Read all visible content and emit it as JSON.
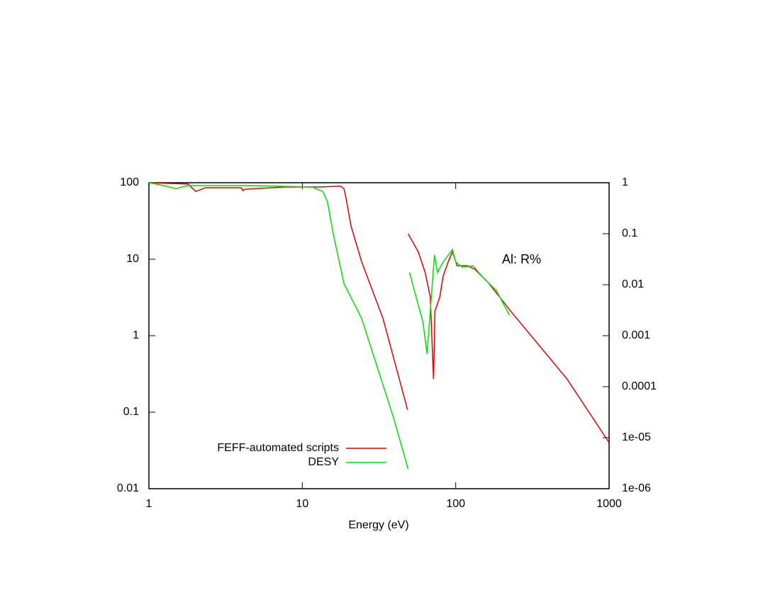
{
  "chart_data": {
    "type": "line",
    "x_label": "Energy (eV)",
    "annotation": "Al: R%",
    "xscale": "log",
    "yscale": "log",
    "y2scale": "log",
    "legend_position": "bottom left",
    "xlim": [
      1,
      1000
    ],
    "xticks": [
      1,
      10,
      100,
      1000
    ],
    "ylim": [
      0.01,
      100
    ],
    "yticks": [
      0.01,
      0.1,
      1,
      10,
      100
    ],
    "y2lim": [
      1e-06,
      1
    ],
    "y2ticks": [
      1,
      0.1,
      0.01,
      0.001,
      0.0001,
      {
        "value": 1e-05,
        "label": "1e-05"
      },
      {
        "value": 1e-06,
        "label": "1e-06"
      }
    ],
    "series": [
      {
        "name": "FEFF-automated scripts",
        "color": "#e00000",
        "x": [
          1,
          1.8,
          2.02,
          2.34,
          4.0,
          4.1,
          4.2,
          7.6,
          12.9,
          17.7,
          18.7,
          19.3,
          20.8,
          24.4,
          33.6,
          48.5,
          null,
          49,
          56.9,
          63.2,
          68.3,
          71.2,
          71.7,
          73.2,
          78.7,
          82.8,
          89.3,
          95.3,
          102,
          120,
          133,
          165,
          228,
          533,
          1000
        ],
        "values": [
          100,
          96,
          77,
          86,
          86,
          79,
          82,
          88,
          88,
          90,
          84,
          62,
          27,
          9.2,
          1.67,
          0.108,
          null,
          21.5,
          12.6,
          6.7,
          3.2,
          0.37,
          0.27,
          2.1,
          3.2,
          6.0,
          9.2,
          12.6,
          8.2,
          8.2,
          7.4,
          4.8,
          2.1,
          0.27,
          0.04
        ]
      },
      {
        "name": "DESY",
        "color": "#00e000",
        "x": [
          1,
          1.24,
          1.5,
          1.8,
          4.4,
          11.6,
          13.6,
          14.6,
          15.9,
          18.7,
          24.4,
          39.3,
          49,
          null,
          50,
          61.2,
          65,
          68.3,
          72.7,
          76.0,
          82.8,
          95.3,
          100,
          110,
          130,
          148,
          184,
          224
        ],
        "values": [
          100,
          92,
          84,
          92,
          92,
          88,
          77,
          56,
          21.5,
          4.8,
          1.67,
          0.085,
          0.018,
          null,
          6.7,
          1.5,
          0.58,
          2.1,
          11.4,
          6.7,
          9.2,
          13.4,
          9.2,
          7.9,
          8.2,
          6.0,
          3.9,
          1.85
        ]
      }
    ]
  }
}
